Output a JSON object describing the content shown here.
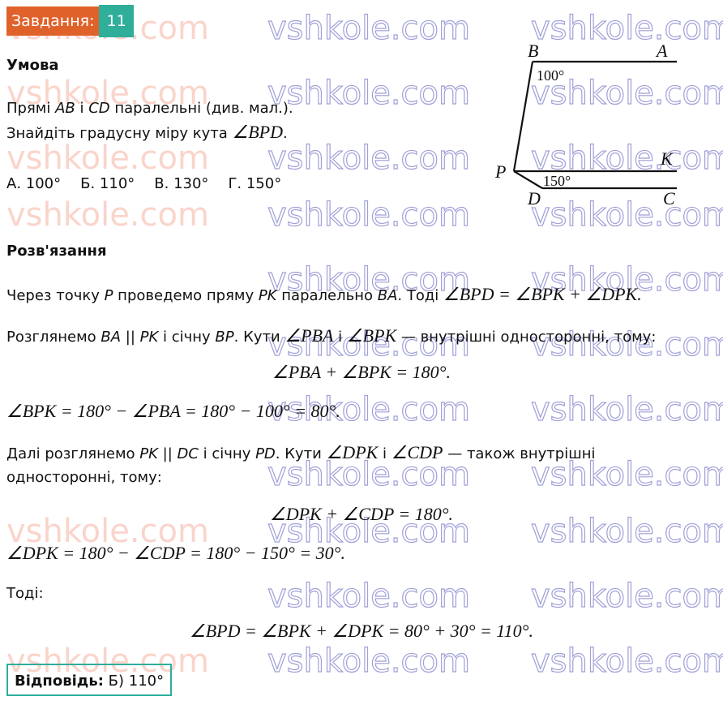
{
  "watermark": "vshkole.com",
  "header": {
    "label": "Завдання:",
    "number": "11"
  },
  "condition": {
    "heading": "Умова",
    "line1": {
      "a": "Прямі ",
      "ab": "AB",
      "b": " і ",
      "cd": "CD",
      "c": " паралельні (див. мал.)."
    },
    "line2": {
      "a": "Знайдіть градусну міру кута ",
      "angle": "∠BPD",
      "b": "."
    },
    "options": [
      "А. 100°",
      "Б. 110°",
      "В. 130°",
      "Г. 150°"
    ]
  },
  "diagram": {
    "labels": {
      "B": "B",
      "A": "A",
      "P": "P",
      "K": "K",
      "D": "D",
      "C": "C"
    },
    "angle_top": "100°",
    "angle_bottom": "150°"
  },
  "solution": {
    "heading": "Розв'язання",
    "p1": {
      "a": "Через точку ",
      "p": "P",
      "b": " проведемо пряму ",
      "pk": "PK",
      "c": " паралельно ",
      "ba": "BA",
      "d": ". Тоді ",
      "formula": "∠BPD = ∠BPK + ∠DPK."
    },
    "p2": {
      "a": "Розглянемо ",
      "rel": "BA || PK",
      "b": " і січну ",
      "bp": "BP",
      "c": ". Кути ",
      "ang1": "∠PBA",
      "d": " і ",
      "ang2": "∠BPK",
      "e": " — внутрішні односторонні, тому:"
    },
    "f1": "∠PBA + ∠BPK = 180°.",
    "f2": "∠BPK = 180° − ∠PBA = 180° − 100° = 80°.",
    "p3": {
      "a": "Далі розглянемо ",
      "rel": "PK || DC",
      "b": " і січну ",
      "pd": "PD",
      "c": ". Кути ",
      "ang1": "∠DPK",
      "d": " і ",
      "ang2": "∠CDP",
      "e": " — також внутрішні",
      "line2": "односторонні, тому:"
    },
    "f3": "∠DPK + ∠CDP = 180°.",
    "f4": "∠DPK = 180° − ∠CDP = 180° − 150° = 30°.",
    "then": "Тоді:",
    "f5": "∠BPD = ∠BPK + ∠DPK = 80° + 30° = 110°."
  },
  "answer": {
    "label": "Відповідь:",
    "value": " Б) 110°"
  }
}
